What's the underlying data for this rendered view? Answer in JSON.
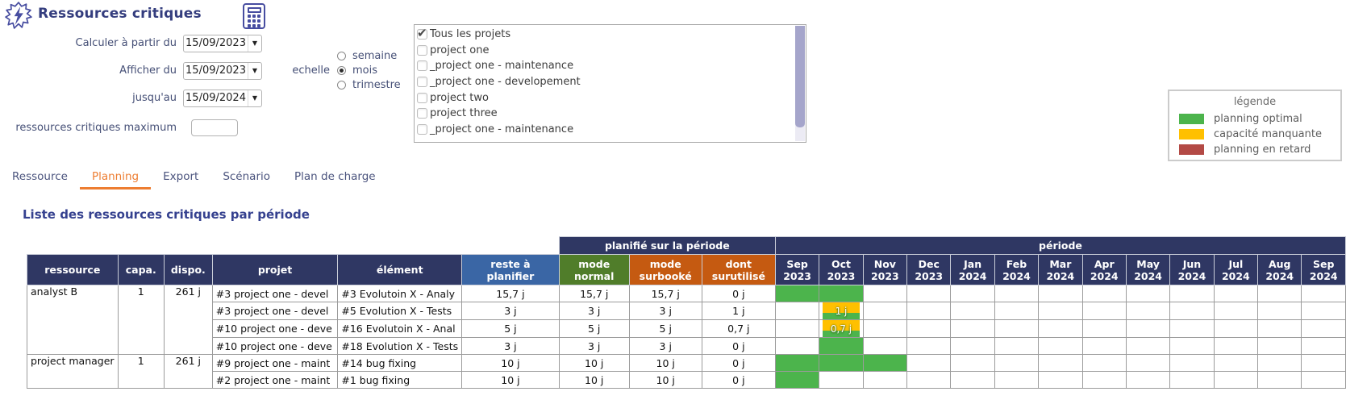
{
  "header": {
    "title": "Ressources critiques"
  },
  "form": {
    "date_fields": [
      {
        "label": "Calculer à partir du",
        "value": "15/09/2023"
      },
      {
        "label": "Afficher du",
        "value": "15/09/2023"
      },
      {
        "label": "jusqu'au",
        "value": "15/09/2024"
      }
    ],
    "max_field": {
      "label": "ressources critiques maximum",
      "value": ""
    },
    "echelle": {
      "label": "echelle",
      "options": [
        "semaine",
        "mois",
        "trimestre"
      ],
      "selected": "mois"
    }
  },
  "projects": {
    "items": [
      {
        "label": "Tous les projets",
        "checked": true
      },
      {
        "label": "project one",
        "checked": false
      },
      {
        "label": "_project one - maintenance",
        "checked": false
      },
      {
        "label": "_project one - developement",
        "checked": false
      },
      {
        "label": "project two",
        "checked": false
      },
      {
        "label": "project three",
        "checked": false
      },
      {
        "label": "_project one - maintenance",
        "checked": false
      }
    ]
  },
  "legend": {
    "title": "légende",
    "items": [
      {
        "label": "planning optimal",
        "color": "#4cb44c"
      },
      {
        "label": "capacité manquante",
        "color": "#ffc000"
      },
      {
        "label": "planning en retard",
        "color": "#b34a45"
      }
    ]
  },
  "tabs": {
    "active": "Planning",
    "items": [
      {
        "id": "ressource",
        "label": "Ressource"
      },
      {
        "id": "planning",
        "label": "Planning"
      },
      {
        "id": "export",
        "label": "Export"
      },
      {
        "id": "scenario",
        "label": "Scénario"
      },
      {
        "id": "plan-de-charge",
        "label": "Plan de charge"
      }
    ]
  },
  "table": {
    "heading": "Liste des ressources critiques par période",
    "columns": {
      "ressource": "ressource",
      "capa": "capa.",
      "dispo": "dispo.",
      "projet": "projet",
      "element": "élément",
      "reste": "reste à planifier",
      "normal": "mode normal",
      "surbooke": "mode surbooké",
      "surutilise": "dont surutilisé"
    },
    "group_planned": "planifié sur la période",
    "group_period": "période",
    "months": [
      {
        "mon": "Sep",
        "year": "2023"
      },
      {
        "mon": "Oct",
        "year": "2023"
      },
      {
        "mon": "Nov",
        "year": "2023"
      },
      {
        "mon": "Dec",
        "year": "2023"
      },
      {
        "mon": "Jan",
        "year": "2024"
      },
      {
        "mon": "Feb",
        "year": "2024"
      },
      {
        "mon": "Mar",
        "year": "2024"
      },
      {
        "mon": "Apr",
        "year": "2024"
      },
      {
        "mon": "May",
        "year": "2024"
      },
      {
        "mon": "Jun",
        "year": "2024"
      },
      {
        "mon": "Jul",
        "year": "2024"
      },
      {
        "mon": "Aug",
        "year": "2024"
      },
      {
        "mon": "Sep",
        "year": "2024"
      }
    ],
    "groups": [
      {
        "ressource": "analyst B",
        "capa": "1",
        "dispo": "261 j",
        "rows": [
          {
            "projet": "#3 project one - devel",
            "element": "#3 Evolutoin X - Analy",
            "reste": "15,7 j",
            "normal": "15,7 j",
            "surbooke": "15,7 j",
            "surutilise": "0 j",
            "surutilise_gold": false,
            "gantt": [
              "green",
              "green",
              "",
              "",
              "",
              "",
              "",
              "",
              "",
              "",
              "",
              "",
              ""
            ]
          },
          {
            "projet": "#3 project one - devel",
            "element": "#5 Evolution X - Tests",
            "reste": "3 j",
            "normal": "3 j",
            "surbooke": "3 j",
            "surutilise": "1 j",
            "surutilise_gold": true,
            "gantt": [
              "",
              "split:1 j",
              "",
              "",
              "",
              "",
              "",
              "",
              "",
              "",
              "",
              "",
              ""
            ]
          },
          {
            "projet": "#10 project one - deve",
            "element": "#16 Evolutoin X - Anal",
            "reste": "5 j",
            "normal": "5 j",
            "surbooke": "5 j",
            "surutilise": "0,7 j",
            "surutilise_gold": true,
            "gantt": [
              "",
              "split:0,7 j",
              "",
              "",
              "",
              "",
              "",
              "",
              "",
              "",
              "",
              "",
              ""
            ]
          },
          {
            "projet": "#10 project one - deve",
            "element": "#18 Evolution X - Tests",
            "reste": "3 j",
            "normal": "3 j",
            "surbooke": "3 j",
            "surutilise": "0 j",
            "surutilise_gold": false,
            "gantt": [
              "",
              "green",
              "",
              "",
              "",
              "",
              "",
              "",
              "",
              "",
              "",
              "",
              ""
            ]
          }
        ]
      },
      {
        "ressource": "project manager",
        "capa": "1",
        "dispo": "261 j",
        "rows": [
          {
            "projet": "#9 project one - maint",
            "element": "#14 bug fixing",
            "reste": "10 j",
            "normal": "10 j",
            "surbooke": "10 j",
            "surutilise": "0 j",
            "surutilise_gold": false,
            "gantt": [
              "green",
              "green",
              "green",
              "",
              "",
              "",
              "",
              "",
              "",
              "",
              "",
              "",
              ""
            ]
          },
          {
            "projet": "#2 project one - maint",
            "element": "#1 bug fixing",
            "reste": "10 j",
            "normal": "10 j",
            "surbooke": "10 j",
            "surutilise": "0 j",
            "surutilise_gold": false,
            "gantt": [
              "green",
              "",
              "",
              "",
              "",
              "",
              "",
              "",
              "",
              "",
              "",
              "",
              ""
            ]
          }
        ]
      }
    ]
  },
  "colors": {
    "accent_orange": "#ed7d31",
    "header_navy": "#2f3763",
    "header_blue": "#3a66a5",
    "header_green": "#507d2a",
    "header_orange": "#c55a11",
    "cell_blue": "#dbe4f0",
    "cell_green": "#e3efd9",
    "cell_orange": "#fce5d5",
    "gantt_green": "#4cb44c",
    "gantt_gold": "#ffc000",
    "icon_purple": "#474da0"
  }
}
